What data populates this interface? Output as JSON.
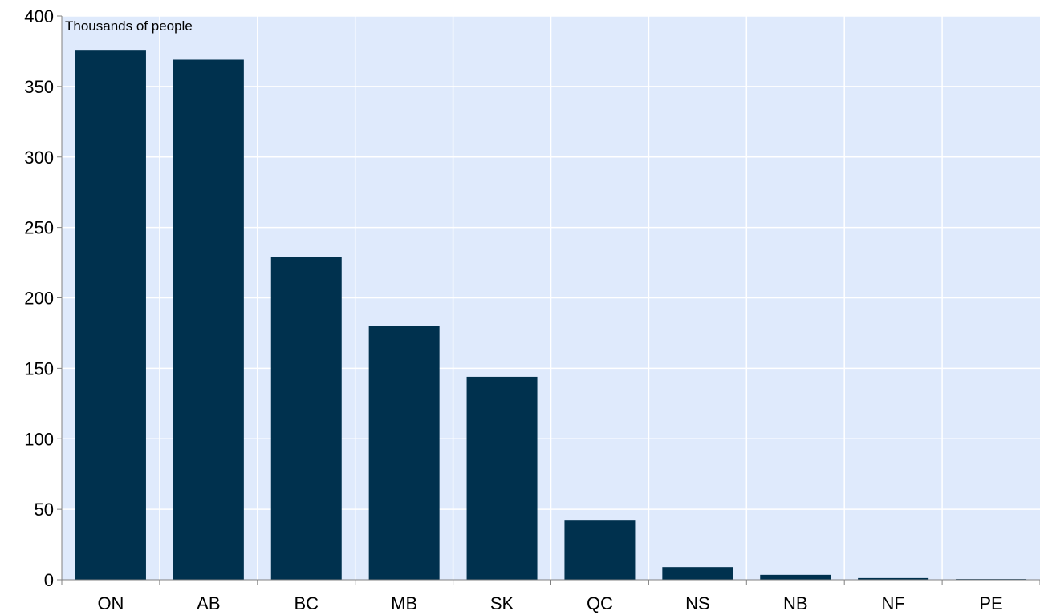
{
  "chart_data": {
    "type": "bar",
    "ylabel": "Thousands of people",
    "categories": [
      "ON",
      "AB",
      "BC",
      "MB",
      "SK",
      "QC",
      "NS",
      "NB",
      "NF",
      "PE"
    ],
    "values": [
      376,
      369,
      229,
      180,
      144,
      42,
      9,
      3.5,
      1.2,
      0.5
    ],
    "ylim": [
      0,
      400
    ],
    "yticks": [
      0,
      50,
      100,
      150,
      200,
      250,
      300,
      350,
      400
    ],
    "grid": true,
    "colors": {
      "plot_background": "#dfeafc",
      "bar": "#00314e",
      "grid": "#ffffff",
      "axis": "#808080"
    }
  }
}
